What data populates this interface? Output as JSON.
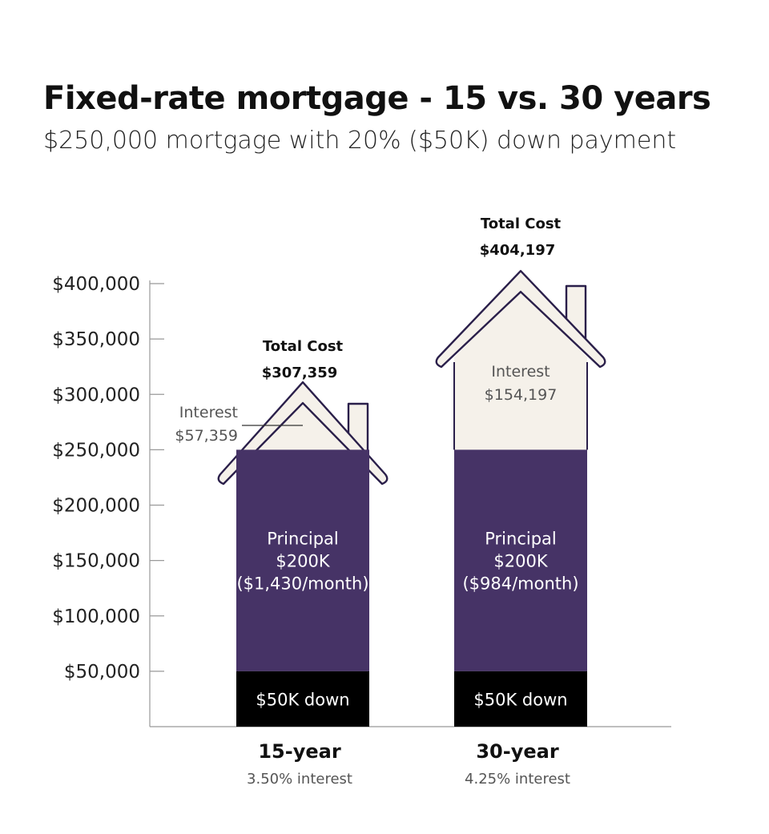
{
  "title": "Fixed-rate mortgage - 15 vs. 30 years",
  "subtitle": "$250,000 mortgage with 20% ($50K) down payment",
  "colors": {
    "principal": "#463366",
    "down": "#000000",
    "interest": "#f5f1ea",
    "outline": "#2a1f4a",
    "axis": "#999999"
  },
  "chart_data": {
    "type": "bar",
    "stacked": true,
    "categories": [
      "15-year",
      "30-year"
    ],
    "category_subtitles": [
      "3.50% interest",
      "4.25% interest"
    ],
    "ylim": [
      0,
      400000
    ],
    "yticks": [
      50000,
      100000,
      150000,
      200000,
      250000,
      300000,
      350000,
      400000
    ],
    "ytick_labels": [
      "$50,000",
      "$100,000",
      "$150,000",
      "$200,000",
      "$250,000",
      "$300,000",
      "$350,000",
      "$400,000"
    ],
    "grid": false,
    "series": [
      {
        "name": "Down payment",
        "values": [
          50000,
          50000
        ],
        "labels": [
          "$50K down",
          "$50K down"
        ]
      },
      {
        "name": "Principal",
        "values": [
          200000,
          200000
        ],
        "labels": [
          [
            "Principal",
            "$200K",
            "($1,430/month)"
          ],
          [
            "Principal",
            "$200K",
            "($984/month)"
          ]
        ]
      },
      {
        "name": "Interest",
        "values": [
          57359,
          154197
        ],
        "labels": [
          [
            "Interest",
            "$57,359"
          ],
          [
            "Interest",
            "$154,197"
          ]
        ]
      }
    ],
    "totals": [
      307359,
      404197
    ],
    "total_label": "Total Cost",
    "total_value_labels": [
      "$307,359",
      "$404,197"
    ]
  }
}
